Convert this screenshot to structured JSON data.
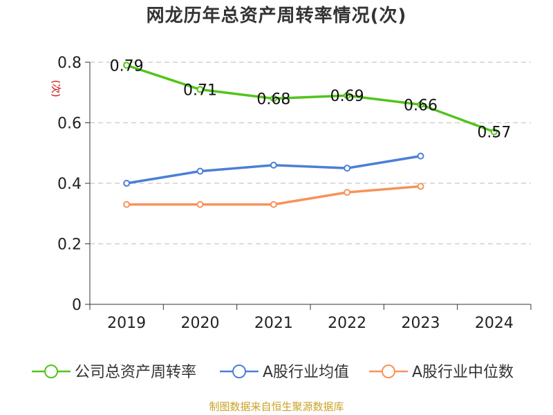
{
  "chart_data": {
    "type": "line",
    "title": "网龙历年总资产周转率情况(次)",
    "ylabel": "(次)",
    "xlabel": "",
    "categories": [
      "2019",
      "2020",
      "2021",
      "2022",
      "2023",
      "2024"
    ],
    "ylim": [
      0,
      0.8
    ],
    "yticks": [
      "0",
      "0.2",
      "0.4",
      "0.6",
      "0.8"
    ],
    "grid": true,
    "legend_position": "bottom",
    "series": [
      {
        "name": "公司总资产周转率",
        "color": "#52c41a",
        "values": [
          0.79,
          0.71,
          0.68,
          0.69,
          0.66,
          0.57
        ],
        "labels": [
          "0.79",
          "0.71",
          "0.68",
          "0.69",
          "0.66",
          "0.57"
        ]
      },
      {
        "name": "A股行业均值",
        "color": "#4a7fd8",
        "values": [
          0.4,
          0.44,
          0.46,
          0.45,
          0.49,
          null
        ]
      },
      {
        "name": "A股行业中位数",
        "color": "#f7925a",
        "values": [
          0.33,
          0.33,
          0.33,
          0.37,
          0.39,
          null
        ]
      }
    ]
  },
  "source": "制图数据来自恒生聚源数据库"
}
